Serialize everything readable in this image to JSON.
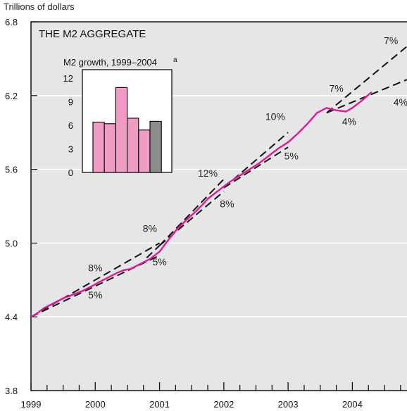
{
  "chart_data": {
    "type": "line",
    "title": "THE M2 AGGREGATE",
    "ylabel": "Trillions of dollars",
    "ylim": [
      3.8,
      6.8
    ],
    "yticks": [
      "3.8",
      "4.4",
      "5.0",
      "5.6",
      "6.2",
      "6.8"
    ],
    "xlim": [
      1999.0,
      2004.85
    ],
    "xticks": [
      "1999",
      "2000",
      "2001",
      "2002",
      "2003",
      "2004"
    ],
    "grid": "horizontal",
    "colors": {
      "m2": "#e0199a",
      "background": "#e6e6e6",
      "trend": "#111111"
    },
    "series": [
      {
        "x": [
          1999.0,
          1999.1,
          1999.2,
          1999.35,
          1999.5,
          1999.65,
          1999.8,
          1999.95,
          2000.05,
          2000.2,
          2000.35,
          2000.45,
          2000.55,
          2000.7,
          2000.85,
          2001.0,
          2001.1,
          2001.25,
          2001.4,
          2001.55,
          2001.7,
          2001.75,
          2001.85,
          2002.0,
          2002.1,
          2002.25,
          2002.4,
          2002.55,
          2002.7,
          2002.85,
          2003.0,
          2003.15,
          2003.3,
          2003.45,
          2003.6,
          2003.75,
          2003.9,
          2004.0,
          2004.15,
          2004.3
        ],
        "values": [
          4.4,
          4.43,
          4.47,
          4.51,
          4.55,
          4.58,
          4.61,
          4.65,
          4.68,
          4.72,
          4.76,
          4.78,
          4.79,
          4.83,
          4.87,
          4.93,
          5.0,
          5.1,
          5.18,
          5.25,
          5.33,
          5.36,
          5.4,
          5.46,
          5.5,
          5.55,
          5.6,
          5.65,
          5.71,
          5.77,
          5.82,
          5.89,
          5.97,
          6.06,
          6.1,
          6.08,
          6.07,
          6.1,
          6.16,
          6.23
        ]
      }
    ],
    "trend_lines": [
      {
        "label": "8%",
        "start": [
          1999.0,
          4.4
        ],
        "end": [
          2001.0,
          5.0
        ]
      },
      {
        "label": "5%",
        "start": [
          1999.0,
          4.4
        ],
        "end": [
          2001.0,
          4.9
        ]
      },
      {
        "label": "8%",
        "start": [
          2000.8,
          4.88
        ],
        "end": [
          2001.0,
          4.98
        ]
      },
      {
        "label": "12%",
        "start": [
          2001.0,
          4.98
        ],
        "end": [
          2002.0,
          5.52
        ]
      },
      {
        "label": "8%",
        "start": [
          2001.0,
          4.98
        ],
        "end": [
          2002.0,
          5.42
        ]
      },
      {
        "label": "10%",
        "start": [
          2002.0,
          5.45
        ],
        "end": [
          2003.0,
          5.9
        ]
      },
      {
        "label": "5%",
        "start": [
          2002.0,
          5.45
        ],
        "end": [
          2003.0,
          5.78
        ]
      },
      {
        "label": "7%",
        "start": [
          2003.6,
          6.06
        ],
        "end": [
          2004.85,
          6.6
        ]
      },
      {
        "label": "4%",
        "start": [
          2003.6,
          6.06
        ],
        "end": [
          2004.85,
          6.33
        ]
      }
    ],
    "line_labels": [
      {
        "text": "8%",
        "x": 2000.0,
        "y": 4.77
      },
      {
        "text": "5%",
        "x": 2000.0,
        "y": 4.55
      },
      {
        "text": "8%",
        "x": 2000.85,
        "y": 5.09
      },
      {
        "text": "5%",
        "x": 2001.0,
        "y": 4.82
      },
      {
        "text": "12%",
        "x": 2001.75,
        "y": 5.54
      },
      {
        "text": "8%",
        "x": 2002.05,
        "y": 5.29
      },
      {
        "text": "10%",
        "x": 2002.8,
        "y": 6.0
      },
      {
        "text": "5%",
        "x": 2003.05,
        "y": 5.68
      },
      {
        "text": "7%",
        "x": 2003.75,
        "y": 6.23
      },
      {
        "text": "4%",
        "x": 2003.95,
        "y": 5.96
      },
      {
        "text": "7%",
        "x": 2004.6,
        "y": 6.62
      },
      {
        "text": "4%",
        "x": 2004.75,
        "y": 6.12
      }
    ],
    "inset": {
      "type": "bar",
      "title": "M2 growth, 1999–2004",
      "superscript": "a",
      "ylim": [
        0,
        12
      ],
      "yticks": [
        "0",
        "3",
        "6",
        "9",
        "12"
      ],
      "values": [
        6.4,
        6.2,
        10.8,
        6.9,
        5.4,
        6.5
      ],
      "colors": [
        "#f09bc4",
        "#f09bc4",
        "#f09bc4",
        "#f09bc4",
        "#f09bc4",
        "#8c8c8c"
      ]
    }
  }
}
